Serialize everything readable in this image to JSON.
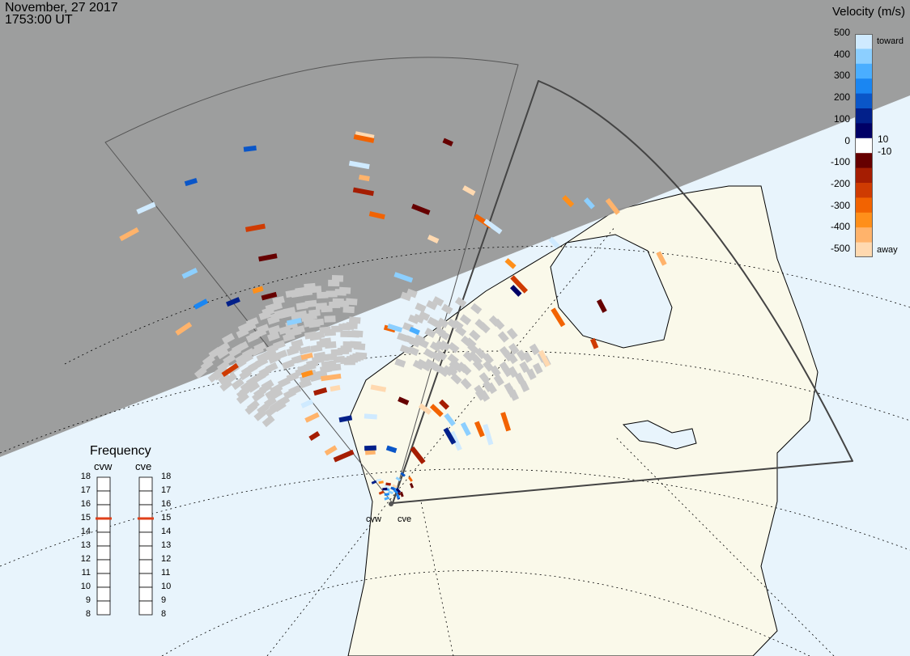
{
  "header": {
    "date": "November, 27 2017",
    "time": "1753:00 UT"
  },
  "velocity_scale": {
    "title": "Velocity (m/s)",
    "ticks": [
      "500",
      "400",
      "300",
      "200",
      "100",
      "0",
      "-100",
      "-200",
      "-300",
      "-400",
      "-500"
    ],
    "inner_labels": [
      "10",
      "-10"
    ],
    "toward_label": "toward",
    "away_label": "away",
    "colors_toward": [
      "#cfeaff",
      "#8ccfff",
      "#4aaeff",
      "#1a86f2",
      "#0a56c8",
      "#02208a",
      "#000066"
    ],
    "colors_away": [
      "#660000",
      "#a51d02",
      "#cf3b02",
      "#f26301",
      "#ff8f1a",
      "#ffb36b",
      "#ffd9b0"
    ]
  },
  "frequency": {
    "title": "Frequency",
    "radars": [
      {
        "name": "cvw",
        "value_mhz": 15
      },
      {
        "name": "cve",
        "value_mhz": 15
      }
    ],
    "ticks": [
      "18",
      "17",
      "16",
      "15",
      "14",
      "13",
      "12",
      "11",
      "10",
      "9",
      "8"
    ],
    "indicator_color": "#e0401a"
  },
  "radar_sites": [
    "cvw",
    "cve"
  ],
  "colors": {
    "night": "#969696",
    "ocean_day": "#e8f4fc",
    "land_day": "#faf9ea",
    "ground_scatter": "#c8c8c8",
    "coast": "#000000"
  }
}
